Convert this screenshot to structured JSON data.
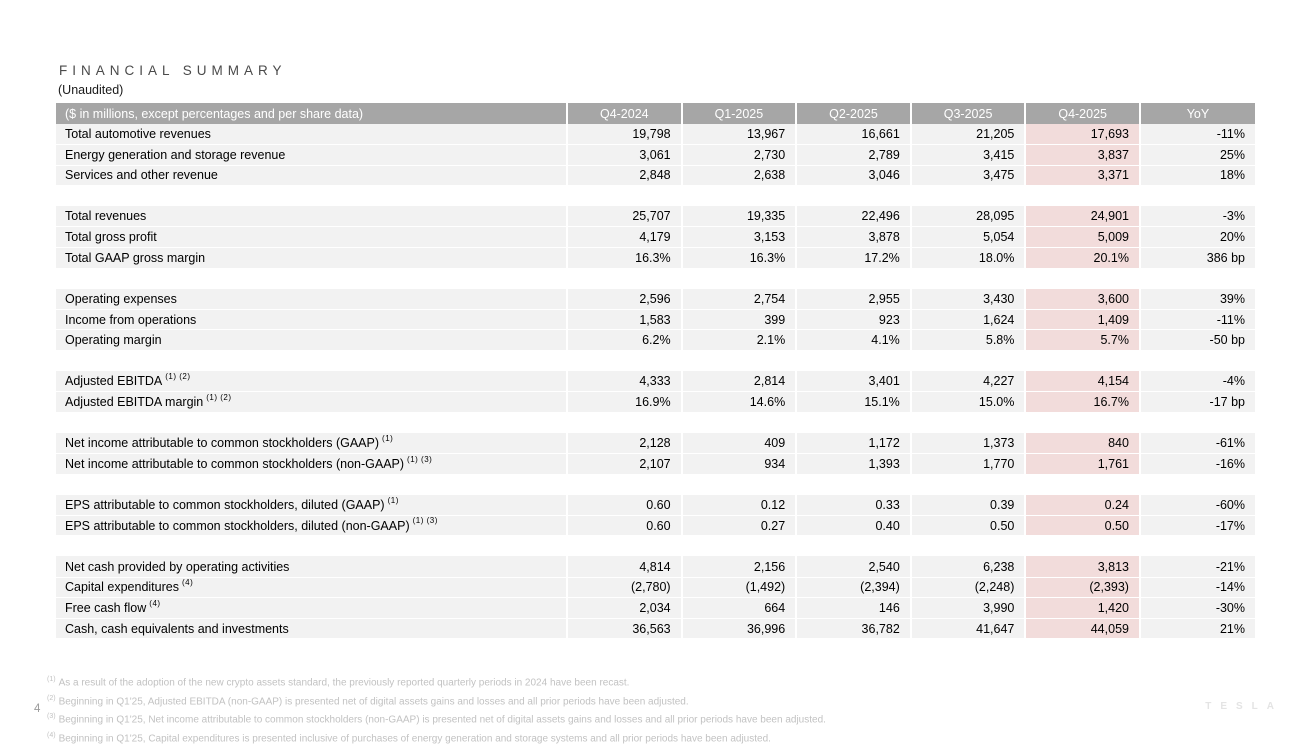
{
  "page": {
    "title": "FINANCIAL SUMMARY",
    "subtitle": "(Unaudited)",
    "page_number": "4",
    "brand": "TESLA"
  },
  "colors": {
    "header_bg": "#a6a6a6",
    "row_bg": "#f2f2f2",
    "highlight_bg": "#f2dcdb",
    "footnote_text": "#c2c2c2"
  },
  "table": {
    "columns": [
      "($ in millions, except percentages and per share data)",
      "Q4-2024",
      "Q1-2025",
      "Q2-2025",
      "Q3-2025",
      "Q4-2025",
      "YoY"
    ],
    "highlight_column": "Q4-2025",
    "rows": [
      {
        "label": "Total automotive revenues",
        "sup": "",
        "values": [
          "19,798",
          "13,967",
          "16,661",
          "21,205",
          "17,693"
        ],
        "yoy": "-11%"
      },
      {
        "label": "Energy generation and storage revenue",
        "sup": "",
        "values": [
          "3,061",
          "2,730",
          "2,789",
          "3,415",
          "3,837"
        ],
        "yoy": "25%"
      },
      {
        "label": "Services and other revenue",
        "sup": "",
        "values": [
          "2,848",
          "2,638",
          "3,046",
          "3,475",
          "3,371"
        ],
        "yoy": "18%"
      },
      {
        "spacer": true
      },
      {
        "label": "Total revenues",
        "sup": "",
        "values": [
          "25,707",
          "19,335",
          "22,496",
          "28,095",
          "24,901"
        ],
        "yoy": "-3%"
      },
      {
        "label": "Total gross profit",
        "sup": "",
        "values": [
          "4,179",
          "3,153",
          "3,878",
          "5,054",
          "5,009"
        ],
        "yoy": "20%"
      },
      {
        "label": "Total GAAP gross margin",
        "sup": "",
        "values": [
          "16.3%",
          "16.3%",
          "17.2%",
          "18.0%",
          "20.1%"
        ],
        "yoy": "386 bp"
      },
      {
        "spacer": true
      },
      {
        "label": "Operating expenses",
        "sup": "",
        "values": [
          "2,596",
          "2,754",
          "2,955",
          "3,430",
          "3,600"
        ],
        "yoy": "39%"
      },
      {
        "label": "Income from operations",
        "sup": "",
        "values": [
          "1,583",
          "399",
          "923",
          "1,624",
          "1,409"
        ],
        "yoy": "-11%"
      },
      {
        "label": "Operating margin",
        "sup": "",
        "values": [
          "6.2%",
          "2.1%",
          "4.1%",
          "5.8%",
          "5.7%"
        ],
        "yoy": "-50 bp"
      },
      {
        "spacer": true
      },
      {
        "label": "Adjusted EBITDA",
        "sup": "(1) (2)",
        "values": [
          "4,333",
          "2,814",
          "3,401",
          "4,227",
          "4,154"
        ],
        "yoy": "-4%"
      },
      {
        "label": "Adjusted EBITDA margin",
        "sup": "(1) (2)",
        "values": [
          "16.9%",
          "14.6%",
          "15.1%",
          "15.0%",
          "16.7%"
        ],
        "yoy": "-17 bp"
      },
      {
        "spacer": true
      },
      {
        "label": "Net income attributable to common stockholders (GAAP)",
        "sup": "(1)",
        "values": [
          "2,128",
          "409",
          "1,172",
          "1,373",
          "840"
        ],
        "yoy": "-61%"
      },
      {
        "label": "Net income attributable to common stockholders (non-GAAP)",
        "sup": "(1) (3)",
        "values": [
          "2,107",
          "934",
          "1,393",
          "1,770",
          "1,761"
        ],
        "yoy": "-16%"
      },
      {
        "spacer": true
      },
      {
        "label": "EPS attributable to common stockholders, diluted (GAAP)",
        "sup": "(1)",
        "values": [
          "0.60",
          "0.12",
          "0.33",
          "0.39",
          "0.24"
        ],
        "yoy": "-60%"
      },
      {
        "label": "EPS attributable to common stockholders, diluted (non-GAAP)",
        "sup": "(1) (3)",
        "values": [
          "0.60",
          "0.27",
          "0.40",
          "0.50",
          "0.50"
        ],
        "yoy": "-17%"
      },
      {
        "spacer": true
      },
      {
        "label": "Net cash provided by operating activities",
        "sup": "",
        "values": [
          "4,814",
          "2,156",
          "2,540",
          "6,238",
          "3,813"
        ],
        "yoy": "-21%"
      },
      {
        "label": "Capital expenditures",
        "sup": "(4)",
        "values": [
          "(2,780)",
          "(1,492)",
          "(2,394)",
          "(2,248)",
          "(2,393)"
        ],
        "yoy": "-14%"
      },
      {
        "label": "Free cash flow",
        "sup": "(4)",
        "values": [
          "2,034",
          "664",
          "146",
          "3,990",
          "1,420"
        ],
        "yoy": "-30%"
      },
      {
        "label": "Cash, cash equivalents and investments",
        "sup": "",
        "values": [
          "36,563",
          "36,996",
          "36,782",
          "41,647",
          "44,059"
        ],
        "yoy": "21%"
      }
    ]
  },
  "footnotes": [
    {
      "marker": "(1)",
      "text": "As a result of the adoption of the new crypto assets standard, the previously reported quarterly periods in 2024 have been recast."
    },
    {
      "marker": "(2)",
      "text": "Beginning in Q1'25, Adjusted EBITDA (non-GAAP) is presented net of digital assets gains and losses and all prior periods have been adjusted."
    },
    {
      "marker": "(3)",
      "text": "Beginning in Q1'25, Net income attributable to common stockholders (non-GAAP) is presented net of digital assets gains and losses and all prior periods have been adjusted."
    },
    {
      "marker": "(4)",
      "text": "Beginning in Q1'25, Capital expenditures is presented inclusive of purchases of energy generation and storage systems and all prior periods have been adjusted."
    }
  ]
}
